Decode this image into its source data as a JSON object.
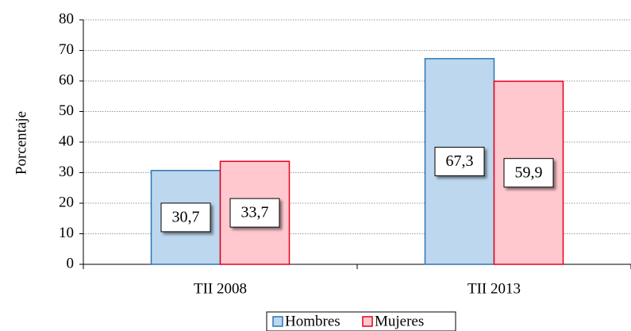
{
  "chart_data": {
    "type": "bar",
    "y_label": "Porcentaje",
    "categories": [
      "TII 2008",
      "TII 2013"
    ],
    "series": [
      {
        "name": "Hombres",
        "color": "#bdd7ee",
        "stroke": "#2e75b6",
        "values": [
          30.7,
          67.3
        ],
        "value_labels": [
          "30,7",
          "67,3"
        ]
      },
      {
        "name": "Mujeres",
        "color": "#ffc7ce",
        "stroke": "#e3001b",
        "values": [
          33.7,
          59.9
        ],
        "value_labels": [
          "33,7",
          "59,9"
        ]
      }
    ],
    "ylim": [
      0,
      80
    ],
    "yticks": [
      0,
      10,
      20,
      30,
      40,
      50,
      60,
      70,
      80
    ],
    "grid": true,
    "legend": "bottom"
  }
}
